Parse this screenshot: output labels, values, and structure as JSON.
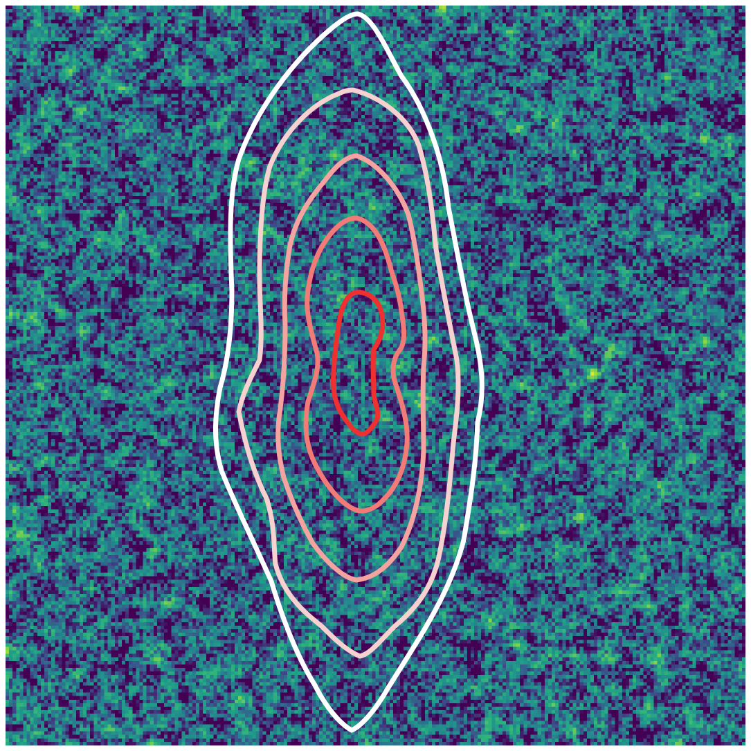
{
  "image": {
    "description_type": "noise-heatmap-with-contours",
    "colormap": "viridis",
    "palette": {
      "dark": "#3e1f6e",
      "mid_low": "#2c6f8e",
      "mid": "#1f9e89",
      "mid_high": "#35b779",
      "bright": "#d5e21a"
    },
    "contour_colors": [
      "#ffffff",
      "#f7d0d0",
      "#f4a3a0",
      "#f27b78",
      "#ee3030"
    ],
    "contour_levels": 5
  }
}
